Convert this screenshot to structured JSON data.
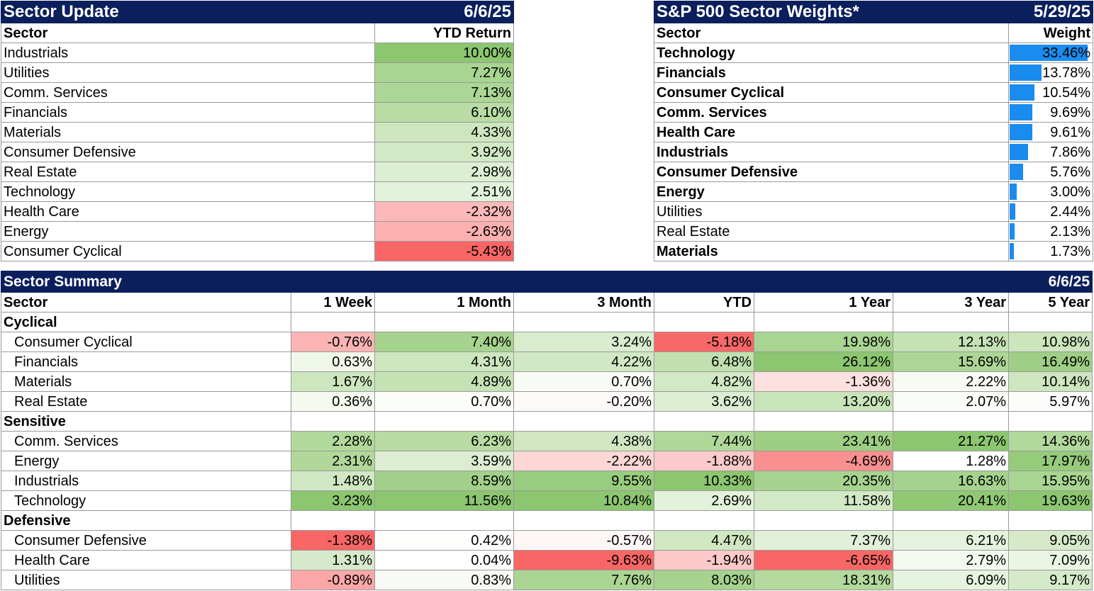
{
  "sector_update": {
    "title": "Sector Update",
    "date": "6/6/25",
    "col_sector": "Sector",
    "col_return": "YTD Return",
    "rows": [
      {
        "sector": "Industrials",
        "ytd": "10.00%",
        "bg": "#8cc670"
      },
      {
        "sector": "Utilities",
        "ytd": "7.27%",
        "bg": "#a9d592"
      },
      {
        "sector": "Comm. Services",
        "ytd": "7.13%",
        "bg": "#acd695"
      },
      {
        "sector": "Financials",
        "ytd": "6.10%",
        "bg": "#b8dca4"
      },
      {
        "sector": "Materials",
        "ytd": "4.33%",
        "bg": "#cde6bf"
      },
      {
        "sector": "Consumer Defensive",
        "ytd": "3.92%",
        "bg": "#d2e9c5"
      },
      {
        "sector": "Real Estate",
        "ytd": "2.98%",
        "bg": "#ddefd3"
      },
      {
        "sector": "Technology",
        "ytd": "2.51%",
        "bg": "#e3f2da"
      },
      {
        "sector": "Health Care",
        "ytd": "-2.32%",
        "bg": "#fcb9b9"
      },
      {
        "sector": "Energy",
        "ytd": "-2.63%",
        "bg": "#fcb0b0"
      },
      {
        "sector": "Consumer Cyclical",
        "ytd": "-5.43%",
        "bg": "#f86666"
      }
    ]
  },
  "sector_weights": {
    "title": "S&P 500 Sector Weights*",
    "date": "5/29/25",
    "col_sector": "Sector",
    "col_weight": "Weight",
    "bar_color": "#1a8cf0",
    "rows": [
      {
        "sector": "Technology",
        "weight": "33.46%",
        "value": 33.46,
        "bold": true
      },
      {
        "sector": "Financials",
        "weight": "13.78%",
        "value": 13.78,
        "bold": true
      },
      {
        "sector": "Consumer Cyclical",
        "weight": "10.54%",
        "value": 10.54,
        "bold": true
      },
      {
        "sector": "Comm. Services",
        "weight": "9.69%",
        "value": 9.69,
        "bold": true
      },
      {
        "sector": "Health Care",
        "weight": "9.61%",
        "value": 9.61,
        "bold": true
      },
      {
        "sector": "Industrials",
        "weight": "7.86%",
        "value": 7.86,
        "bold": true
      },
      {
        "sector": "Consumer Defensive",
        "weight": "5.76%",
        "value": 5.76,
        "bold": true
      },
      {
        "sector": "Energy",
        "weight": "3.00%",
        "value": 3.0,
        "bold": true
      },
      {
        "sector": "Utilities",
        "weight": "2.44%",
        "value": 2.44,
        "bold": false
      },
      {
        "sector": "Real Estate",
        "weight": "2.13%",
        "value": 2.13,
        "bold": false
      },
      {
        "sector": "Materials",
        "weight": "1.73%",
        "value": 1.73,
        "bold": true
      }
    ]
  },
  "sector_summary": {
    "title": "Sector Summary",
    "date": "6/6/25",
    "columns": [
      "Sector",
      "1 Week",
      "1 Month",
      "3 Month",
      "YTD",
      "1 Year",
      "3 Year",
      "5 Year"
    ],
    "groups": [
      {
        "name": "Cyclical",
        "rows": [
          {
            "sector": "Consumer Cyclical",
            "values": [
              "-0.76%",
              "7.40%",
              "3.24%",
              "-5.18%",
              "19.98%",
              "12.13%",
              "10.98%"
            ],
            "colors": [
              "#fbb4b4",
              "#a6d38e",
              "#d9ecce",
              "#f86868",
              "#a9d592",
              "#c5e2b5",
              "#cbe5bd"
            ]
          },
          {
            "sector": "Financials",
            "values": [
              "0.63%",
              "4.31%",
              "4.22%",
              "6.48%",
              "26.12%",
              "15.69%",
              "16.49%"
            ],
            "colors": [
              "#f0f8ea",
              "#cce6be",
              "#d1e8c4",
              "#c1e0b0",
              "#8cc670",
              "#add696",
              "#9fcf86"
            ]
          },
          {
            "sector": "Materials",
            "values": [
              "1.67%",
              "4.89%",
              "0.70%",
              "4.82%",
              "-1.36%",
              "2.22%",
              "10.14%"
            ],
            "colors": [
              "#cce6be",
              "#c5e2b5",
              "#f8fbf5",
              "#d2e9c5",
              "#fde0e0",
              "#f7fbf4",
              "#cde6bf"
            ]
          },
          {
            "sector": "Real Estate",
            "values": [
              "0.36%",
              "0.70%",
              "-0.20%",
              "3.62%",
              "13.20%",
              "2.07%",
              "5.97%"
            ],
            "colors": [
              "#f5faf1",
              "#fbfdf9",
              "#fefafa",
              "#dcedd2",
              "#c8e4b9",
              "#fafdf7",
              "#fcfdfa"
            ]
          }
        ]
      },
      {
        "name": "Sensitive",
        "rows": [
          {
            "sector": "Comm. Services",
            "values": [
              "2.28%",
              "6.23%",
              "4.38%",
              "7.44%",
              "23.41%",
              "21.27%",
              "14.36%"
            ],
            "colors": [
              "#b2d99c",
              "#b7dba2",
              "#d0e7c2",
              "#b0d899",
              "#9dce84",
              "#8cc670",
              "#b2d99c"
            ]
          },
          {
            "sector": "Energy",
            "values": [
              "2.31%",
              "3.59%",
              "-2.22%",
              "-1.88%",
              "-4.69%",
              "1.28%",
              "17.97%"
            ],
            "colors": [
              "#b1d89a",
              "#dcedd1",
              "#fdd6d6",
              "#fccaca",
              "#fa8f8f",
              "#ffffff",
              "#96cb7c"
            ]
          },
          {
            "sector": "Industrials",
            "values": [
              "1.48%",
              "8.59%",
              "9.55%",
              "10.33%",
              "20.35%",
              "16.63%",
              "15.95%"
            ],
            "colors": [
              "#d1e8c4",
              "#a2d08a",
              "#98cc7e",
              "#8cc670",
              "#a6d38e",
              "#a5d28d",
              "#a9d592"
            ]
          },
          {
            "sector": "Technology",
            "values": [
              "3.23%",
              "11.56%",
              "10.84%",
              "2.69%",
              "11.58%",
              "20.41%",
              "19.63%"
            ],
            "colors": [
              "#8cc670",
              "#8cc670",
              "#8cc670",
              "#e3f2da",
              "#d2e9c5",
              "#90c874",
              "#8cc670"
            ]
          }
        ]
      },
      {
        "name": "Defensive",
        "rows": [
          {
            "sector": "Consumer Defensive",
            "values": [
              "-1.38%",
              "0.42%",
              "-0.57%",
              "4.47%",
              "7.37%",
              "6.21%",
              "9.05%"
            ],
            "colors": [
              "#f86666",
              "#fdfefc",
              "#fff6f6",
              "#d0e7c2",
              "#e1f0d8",
              "#e5f2dd",
              "#d6eaca"
            ]
          },
          {
            "sector": "Health Care",
            "values": [
              "1.31%",
              "0.04%",
              "-9.63%",
              "-1.94%",
              "-6.65%",
              "2.79%",
              "7.09%"
            ],
            "colors": [
              "#d6eacb",
              "#ffffff",
              "#f86666",
              "#fcc8c8",
              "#f86666",
              "#f3f9ef",
              "#eaf5e3"
            ]
          },
          {
            "sector": "Utilities",
            "values": [
              "-0.89%",
              "0.83%",
              "7.76%",
              "8.03%",
              "18.31%",
              "6.09%",
              "9.17%"
            ],
            "colors": [
              "#fba7a7",
              "#f8fbf5",
              "#aad592",
              "#a5d28d",
              "#b3d99d",
              "#e6f3df",
              "#d5eac9"
            ]
          }
        ]
      }
    ]
  }
}
